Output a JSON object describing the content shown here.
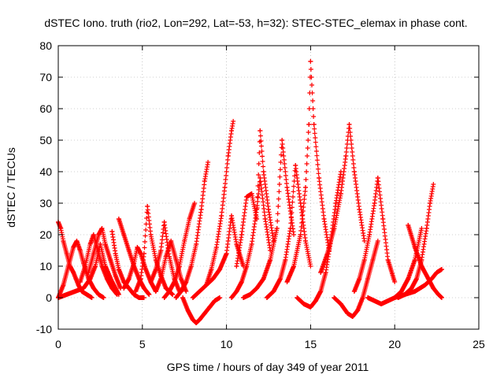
{
  "chart_data": {
    "type": "scatter",
    "title": "dSTEC Iono. truth (rio2, Lon=292, Lat=-53, h=32): STEC-STEC_elemax in phase cont.",
    "xlabel": "GPS time / hours of day 349 of year 2011",
    "ylabel": "dSTEC  / TECUs",
    "xlim": [
      0,
      25
    ],
    "ylim": [
      -10,
      80
    ],
    "xticks": [
      "0",
      "5",
      "10",
      "15",
      "20",
      "25"
    ],
    "yticks": [
      "-10",
      "0",
      "10",
      "20",
      "30",
      "40",
      "50",
      "60",
      "70",
      "80"
    ],
    "grid": true,
    "legend": "none",
    "marker": "+",
    "color": "#ff0000",
    "series": [
      {
        "x": [
          0.0,
          0.15,
          0.3,
          0.5,
          0.7,
          0.9,
          1.05,
          1.2,
          1.4,
          1.7,
          2.0
        ],
        "y": [
          24,
          22,
          18,
          14,
          10,
          8,
          6,
          4,
          2,
          1,
          0
        ]
      },
      {
        "x": [
          0.0,
          0.3,
          0.6,
          0.9,
          1.1,
          1.3,
          1.5,
          1.8,
          2.1,
          2.4,
          2.7
        ],
        "y": [
          0,
          4,
          10,
          16,
          18,
          15,
          11,
          6,
          3,
          1,
          0
        ]
      },
      {
        "x": [
          0.0,
          0.5,
          1.0,
          1.5,
          1.9,
          2.2,
          2.5,
          2.8,
          3.2,
          3.6
        ],
        "y": [
          0,
          1,
          2,
          3,
          6,
          10,
          17,
          10,
          5,
          1
        ]
      },
      {
        "x": [
          1.3,
          1.6,
          1.9,
          2.1,
          2.3,
          2.6,
          2.9,
          3.2,
          3.5
        ],
        "y": [
          5,
          10,
          17,
          20,
          16,
          10,
          6,
          3,
          1
        ]
      },
      {
        "x": [
          1.8,
          2.1,
          2.4,
          2.6,
          2.8,
          3.1,
          3.4,
          3.7
        ],
        "y": [
          8,
          14,
          20,
          22,
          17,
          12,
          7,
          3
        ]
      },
      {
        "x": [
          3.2,
          3.4,
          3.6,
          3.9,
          4.2,
          4.5,
          4.8,
          5.1
        ],
        "y": [
          21,
          14,
          9,
          5,
          3,
          1,
          0,
          0
        ]
      },
      {
        "x": [
          3.6,
          3.9,
          4.2,
          4.5,
          4.8,
          5.1,
          5.4
        ],
        "y": [
          25,
          20,
          15,
          10,
          6,
          3,
          1
        ]
      },
      {
        "x": [
          3.9,
          4.2,
          4.5,
          4.7,
          4.9,
          5.2,
          5.5,
          5.8
        ],
        "y": [
          3,
          6,
          11,
          16,
          14,
          9,
          5,
          2
        ]
      },
      {
        "x": [
          4.6,
          4.9,
          5.1,
          5.3,
          5.5,
          5.8,
          6.1,
          6.4,
          6.8
        ],
        "y": [
          2,
          6,
          14,
          29,
          20,
          12,
          7,
          3,
          1
        ]
      },
      {
        "x": [
          5.5,
          5.8,
          6.1,
          6.3,
          6.6,
          6.9,
          7.2
        ],
        "y": [
          5,
          9,
          15,
          24,
          13,
          6,
          2
        ]
      },
      {
        "x": [
          5.8,
          6.1,
          6.4,
          6.7,
          7.0,
          7.3,
          7.6
        ],
        "y": [
          2,
          6,
          13,
          18,
          12,
          6,
          2
        ]
      },
      {
        "x": [
          6.3,
          6.6,
          6.9,
          7.2,
          7.5,
          7.8,
          8.1
        ],
        "y": [
          0,
          2,
          5,
          10,
          18,
          25,
          30
        ]
      },
      {
        "x": [
          7.4,
          7.7,
          8.0,
          8.2,
          8.4,
          8.7,
          9.0,
          9.3,
          9.6
        ],
        "y": [
          0,
          -4,
          -7,
          -8,
          -7,
          -5,
          -3,
          -1,
          0
        ]
      },
      {
        "x": [
          7.0,
          7.3,
          7.6,
          7.9,
          8.2,
          8.5,
          8.7,
          8.9
        ],
        "y": [
          0,
          2,
          5,
          10,
          17,
          28,
          37,
          43
        ]
      },
      {
        "x": [
          8.0,
          8.4,
          8.8,
          9.2,
          9.6,
          10.0,
          10.3,
          10.6,
          11.0
        ],
        "y": [
          0,
          2,
          4,
          6,
          9,
          14,
          26,
          17,
          10
        ]
      },
      {
        "x": [
          8.8,
          9.1,
          9.4,
          9.7,
          9.9,
          10.1,
          10.3,
          10.4
        ],
        "y": [
          4,
          9,
          16,
          26,
          35,
          45,
          53,
          56
        ]
      },
      {
        "x": [
          10.3,
          10.6,
          10.9,
          11.2,
          11.5,
          11.8,
          12.0,
          12.3,
          12.6
        ],
        "y": [
          0,
          2,
          5,
          10,
          17,
          28,
          38,
          25,
          15
        ]
      },
      {
        "x": [
          10.6,
          10.9,
          11.2,
          11.5,
          11.8,
          12.0,
          12.2,
          12.5,
          12.8
        ],
        "y": [
          10,
          20,
          32,
          33,
          25,
          53,
          40,
          28,
          18
        ]
      },
      {
        "x": [
          11.0,
          11.4,
          11.8,
          12.2,
          12.6,
          13.0,
          13.3,
          13.6,
          14.0
        ],
        "y": [
          0,
          1,
          3,
          6,
          12,
          22,
          50,
          35,
          20
        ]
      },
      {
        "x": [
          12.4,
          12.8,
          13.2,
          13.5,
          13.8,
          14.1,
          14.4,
          14.7,
          15.0
        ],
        "y": [
          0,
          2,
          6,
          12,
          22,
          42,
          30,
          18,
          10
        ]
      },
      {
        "x": [
          13.6,
          14.0,
          14.4,
          14.7,
          14.9,
          15.0,
          15.2,
          15.5,
          15.8,
          16.1
        ],
        "y": [
          5,
          10,
          20,
          35,
          55,
          75,
          55,
          38,
          25,
          15
        ]
      },
      {
        "x": [
          14.2,
          14.6,
          15.0,
          15.3,
          15.6,
          15.9,
          16.2,
          16.5,
          16.8
        ],
        "y": [
          0,
          -2,
          -3,
          -1,
          2,
          8,
          18,
          30,
          40
        ]
      },
      {
        "x": [
          15.6,
          16.0,
          16.4,
          16.8,
          17.1,
          17.3,
          17.6,
          17.9,
          18.2
        ],
        "y": [
          8,
          14,
          22,
          33,
          45,
          55,
          40,
          28,
          18
        ]
      },
      {
        "x": [
          16.4,
          16.8,
          17.2,
          17.5,
          17.8,
          18.1,
          18.4,
          18.7,
          19.0
        ],
        "y": [
          0,
          -2,
          -5,
          -6,
          -4,
          0,
          6,
          12,
          18
        ]
      },
      {
        "x": [
          17.6,
          17.9,
          18.2,
          18.5,
          18.8,
          19.0,
          19.3,
          19.6,
          20.0
        ],
        "y": [
          2,
          6,
          12,
          20,
          30,
          38,
          25,
          12,
          5
        ]
      },
      {
        "x": [
          18.4,
          18.8,
          19.2,
          19.6,
          20.0,
          20.4,
          20.8,
          21.2,
          21.6
        ],
        "y": [
          0,
          -1,
          -2,
          -1,
          0,
          2,
          6,
          12,
          22
        ]
      },
      {
        "x": [
          20.2,
          20.6,
          21.0,
          21.3,
          21.6,
          21.9,
          22.1,
          22.3
        ],
        "y": [
          0,
          1,
          3,
          6,
          12,
          22,
          30,
          36
        ]
      },
      {
        "x": [
          20.8,
          21.2,
          21.6,
          22.0,
          22.3,
          22.6,
          22.8
        ],
        "y": [
          23,
          16,
          10,
          6,
          3,
          1,
          0
        ]
      },
      {
        "x": [
          20.0,
          20.6,
          21.2,
          21.8,
          22.2,
          22.5,
          22.8
        ],
        "y": [
          0,
          1,
          2,
          4,
          6,
          8,
          9
        ]
      }
    ]
  }
}
